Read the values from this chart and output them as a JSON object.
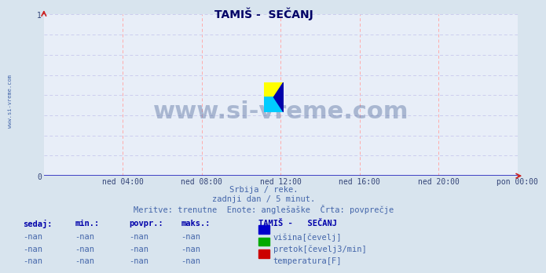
{
  "title": "TAMIŠ -  SEČANJ",
  "bg_color": "#d8e4ee",
  "plot_bg_color": "#e8eef8",
  "grid_color_v": "#ffaaaa",
  "grid_color_h": "#ccccee",
  "axis_color": "#2222bb",
  "title_color": "#000066",
  "xlabel_ticks": [
    "ned 04:00",
    "ned 08:00",
    "ned 12:00",
    "ned 16:00",
    "ned 20:00",
    "pon 00:00"
  ],
  "ylim": [
    0,
    1
  ],
  "xlim": [
    0,
    288
  ],
  "subtitle1": "Srbija / reke.",
  "subtitle2": "zadnji dan / 5 minut.",
  "subtitle3": "Meritve: trenutne  Enote: anglešaške  Črta: povprečje",
  "subtitle_color": "#4466aa",
  "watermark": "www.si-vreme.com",
  "watermark_color": "#1a3a7a",
  "watermark_alpha": 0.3,
  "legend_title": "TAMIŠ -   SEČANJ",
  "legend_items": [
    {
      "label": "višina[čevelj]",
      "color": "#0000cc"
    },
    {
      "label": "pretok[čevelj3/min]",
      "color": "#00aa00"
    },
    {
      "label": "temperatura[F]",
      "color": "#cc0000"
    }
  ],
  "table_headers": [
    "sedaj:",
    "min.:",
    "povpr.:",
    "maks.:"
  ],
  "table_values": [
    "-nan",
    "-nan",
    "-nan",
    "-nan"
  ],
  "left_label": "www.si-vreme.com",
  "left_label_color": "#4466aa"
}
